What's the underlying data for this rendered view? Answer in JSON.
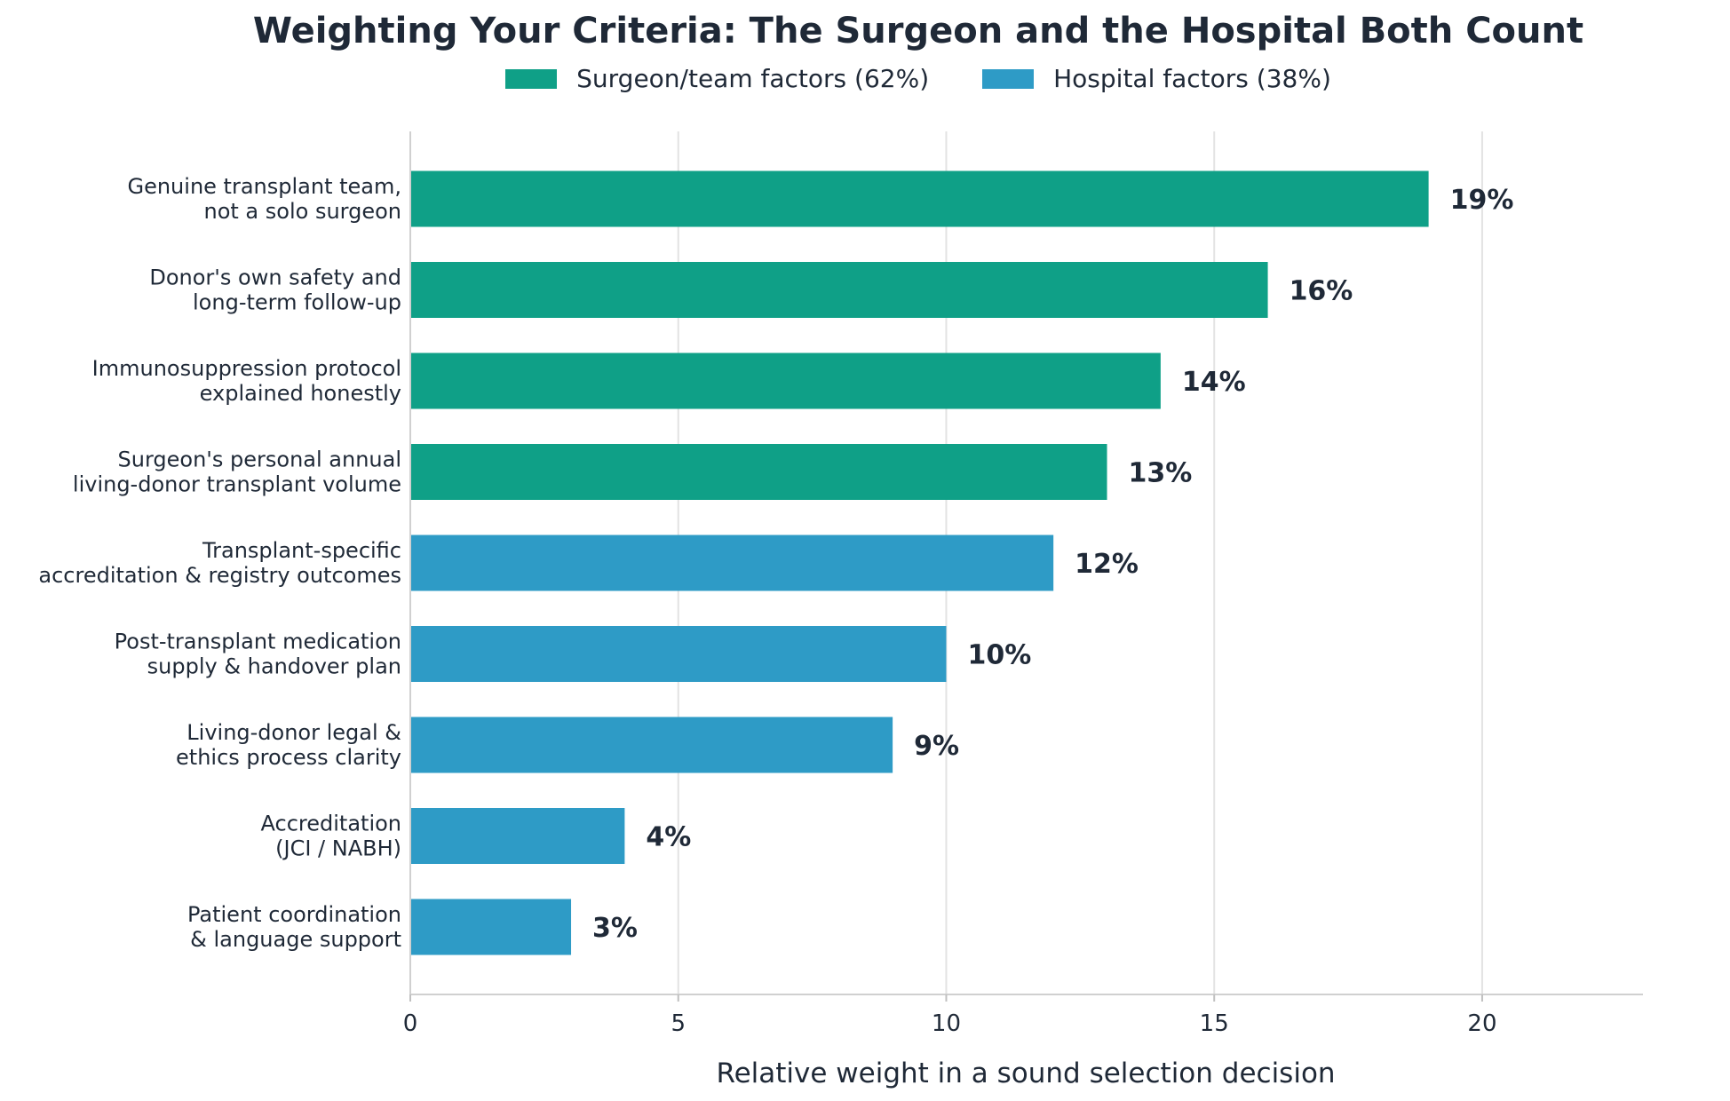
{
  "chart_data": {
    "type": "bar",
    "orientation": "horizontal",
    "title": "Weighting Your Criteria: The Surgeon and the Hospital Both Count",
    "xlabel": "Relative weight in a sound selection decision",
    "ylabel": "",
    "xlim": [
      0,
      23
    ],
    "xticks": [
      0,
      5,
      10,
      15,
      20
    ],
    "grid": "vertical",
    "legend_position": "top",
    "legend": [
      {
        "label": "Surgeon/team factors  (62%)",
        "color": "#0fa087"
      },
      {
        "label": "Hospital factors  (38%)",
        "color": "#2e9bc6"
      }
    ],
    "categories": [
      [
        "Genuine transplant team,",
        "not a solo surgeon"
      ],
      [
        "Donor's own safety and",
        "long-term follow-up"
      ],
      [
        "Immunosuppression protocol",
        "explained honestly"
      ],
      [
        "Surgeon's personal annual",
        "living-donor transplant volume"
      ],
      [
        "Transplant-specific",
        "accreditation & registry outcomes"
      ],
      [
        "Post-transplant medication",
        "supply & handover plan"
      ],
      [
        "Living-donor legal &",
        "ethics process clarity"
      ],
      [
        "Accreditation",
        "(JCI / NABH)"
      ],
      [
        "Patient coordination",
        "& language support"
      ]
    ],
    "values": [
      19,
      16,
      14,
      13,
      12,
      10,
      9,
      4,
      3
    ],
    "value_labels": [
      "19%",
      "16%",
      "14%",
      "13%",
      "12%",
      "10%",
      "9%",
      "4%",
      "3%"
    ],
    "groups": [
      0,
      0,
      0,
      0,
      1,
      1,
      1,
      1,
      1
    ]
  }
}
